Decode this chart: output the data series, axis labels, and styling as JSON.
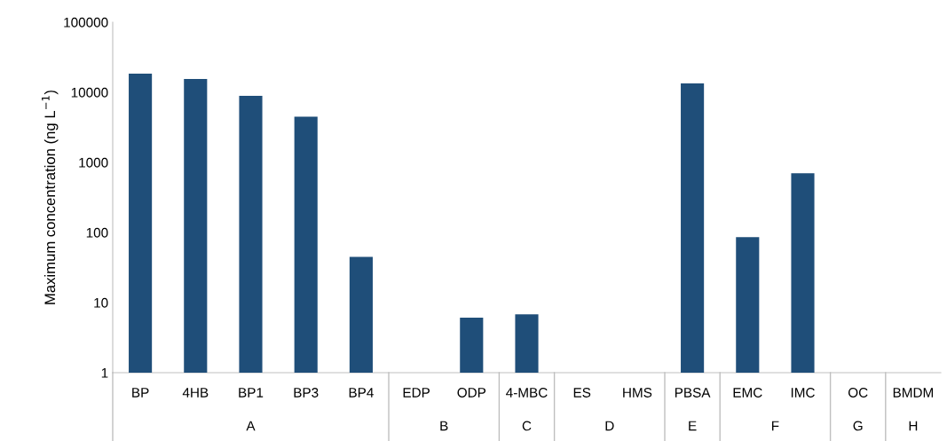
{
  "chart_data": {
    "type": "bar",
    "ylabel": "Maximum concentration (ng L$^{−1}$)",
    "categories": [
      "BP",
      "4HB",
      "BP1",
      "BP3",
      "BP4",
      "EDP",
      "ODP",
      "4-MBC",
      "ES",
      "HMS",
      "PBSA",
      "EMC",
      "IMC",
      "OC",
      "BMDM"
    ],
    "values": [
      18500,
      15500,
      8900,
      4500,
      45,
      null,
      6.1,
      6.8,
      null,
      null,
      13400,
      86,
      700,
      null,
      null
    ],
    "color": "#1f4e79",
    "annotations": [
      "A",
      "B",
      "C",
      "D",
      "E",
      "F",
      "G",
      "H"
    ],
    "log": true,
    "ylim": [
      1,
      100000
    ],
    "yticks": [
      1,
      10,
      100,
      1000,
      10000,
      100000
    ],
    "grid": false,
    "legend": false
  }
}
